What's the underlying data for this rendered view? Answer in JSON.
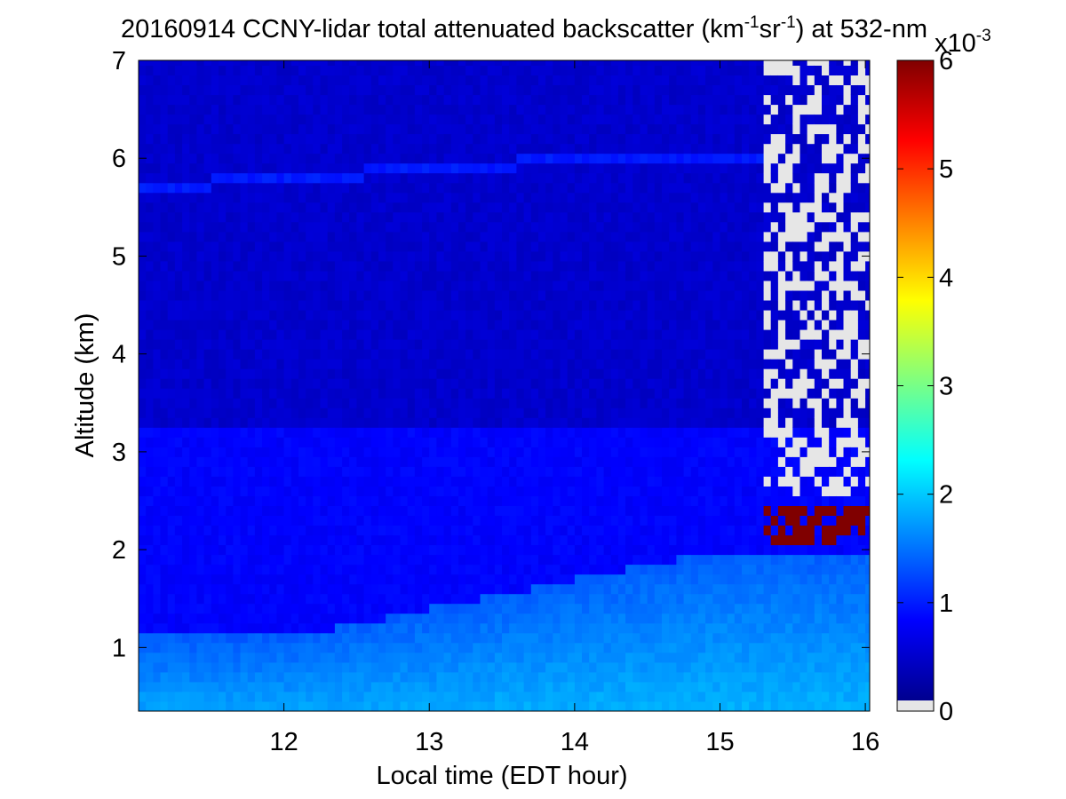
{
  "chart_data": {
    "type": "heatmap",
    "title": {
      "main": "20160914 CCNY-lidar total attenuated backscatter (km",
      "sup1": "-1",
      "mid": "sr",
      "sup2": "-1",
      "tail": ") at 532-nm"
    },
    "xlabel": "Local time (EDT hour)",
    "ylabel": "Altitude (km)",
    "xlim": [
      11.0,
      16.03
    ],
    "ylim": [
      0.35,
      7.0
    ],
    "xticks": [
      12,
      13,
      14,
      15,
      16
    ],
    "yticks": [
      1,
      2,
      3,
      4,
      5,
      6,
      7
    ],
    "colorbar": {
      "ticks": [
        0,
        1,
        2,
        3,
        4,
        5,
        6
      ],
      "clim": [
        0,
        6
      ],
      "multiplier_base": "x10",
      "multiplier_exp": "-3",
      "colormap": "jet",
      "nodata_color": "#e6e6e6"
    },
    "features": {
      "background_level": 0.45,
      "cloud_layer_altitude_km": [
        5.7,
        6.0
      ],
      "aerosol_layer_top_km": [
        3.3,
        3.2
      ],
      "boundary_layer_top_km": [
        1.1,
        2.0
      ],
      "low_cloud_base_km": 2.0,
      "low_cloud_start_hour": 15.3
    }
  }
}
